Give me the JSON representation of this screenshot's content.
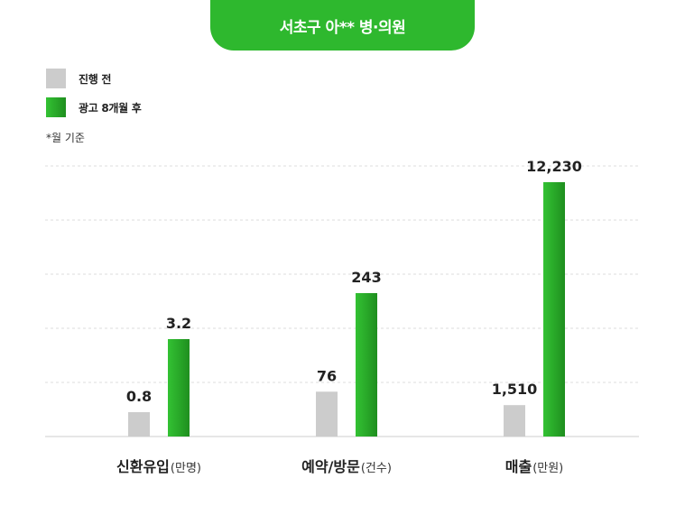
{
  "banner": {
    "title": "서초구 아** 병·의원"
  },
  "legend": [
    {
      "label": "진행 전",
      "color": "#cccccc"
    },
    {
      "label": "광고 8개월 후",
      "color": "#2eb82e"
    }
  ],
  "note": "*월 기준",
  "colors": {
    "before": "#cccccc",
    "after_light": "#33c233",
    "after_dark": "#1f8f1f",
    "grid": "#dddddd",
    "axis": "#cccccc"
  },
  "chart_data": {
    "type": "bar",
    "categories": [
      {
        "name": "신환유입",
        "unit": "(만명)"
      },
      {
        "name": "예약/방문",
        "unit": "(건수)"
      },
      {
        "name": "매출",
        "unit": "(만원)"
      }
    ],
    "series": [
      {
        "name": "진행 전",
        "values": [
          0.8,
          76,
          1510
        ],
        "labels": [
          "0.8",
          "76",
          "1,510"
        ]
      },
      {
        "name": "광고 8개월 후",
        "values": [
          3.2,
          243,
          12230
        ],
        "labels": [
          "3.2",
          "243",
          "12,230"
        ]
      }
    ],
    "grid": true
  }
}
